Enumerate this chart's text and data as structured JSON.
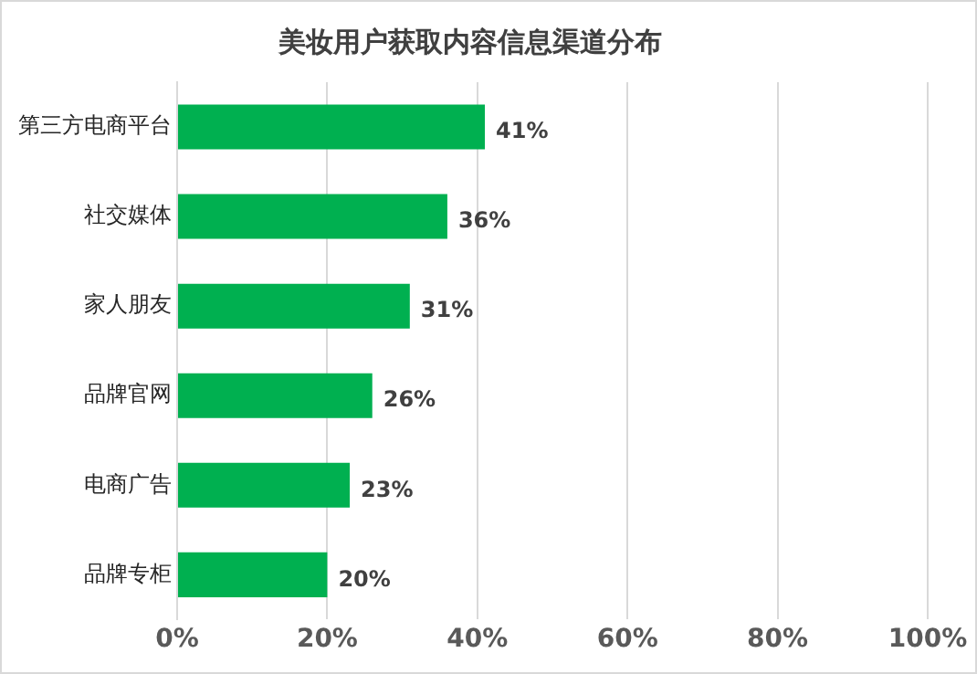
{
  "chart_data": {
    "type": "bar",
    "orientation": "horizontal",
    "title": "美妆用户获取内容信息渠道分布",
    "categories": [
      "第三方电商平台",
      "社交媒体",
      "家人朋友",
      "品牌官网",
      "电商广告",
      "品牌专柜"
    ],
    "values": [
      41,
      36,
      31,
      26,
      23,
      20
    ],
    "color": "#00b050",
    "value_labels": [
      "41%",
      "36%",
      "31%",
      "26%",
      "23%",
      "20%"
    ],
    "xlim": [
      0,
      100
    ],
    "xticks": [
      {
        "value": 0,
        "label": "0%"
      },
      {
        "value": 20,
        "label": "20%"
      },
      {
        "value": 40,
        "label": "40%"
      },
      {
        "value": 60,
        "label": "60%"
      },
      {
        "value": 80,
        "label": "80%"
      },
      {
        "value": 100,
        "label": "100%"
      }
    ],
    "grid": "x",
    "legend": false
  }
}
